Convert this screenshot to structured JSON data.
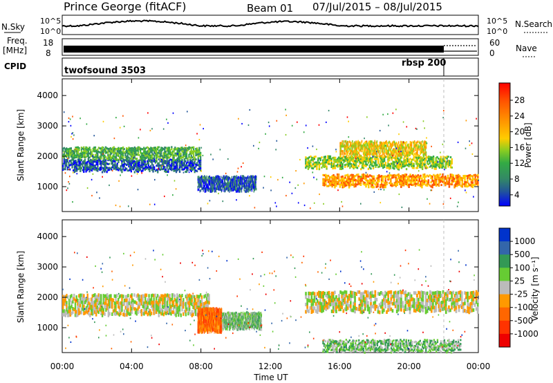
{
  "header": {
    "station": "Prince George (fitACF)",
    "beam": "Beam 01",
    "dates": "07/Jul/2015 – 08/Jul/2015"
  },
  "side_labels": {
    "nsky": "N.Sky",
    "freq": "Freq.",
    "mhz": "[MHz]",
    "cpid": "CPID",
    "nsearch": "N.Search",
    "nave": "Nave"
  },
  "cpid_entries": [
    {
      "label": "twofsound 3503",
      "start_hour": 0
    },
    {
      "label": "rbsp 200",
      "start_hour": 22
    }
  ],
  "nsky_axis": {
    "top": "10^5",
    "bottom": "10^0"
  },
  "freq_axis": {
    "ticks": [
      "18",
      "8"
    ]
  },
  "nave_axis": {
    "ticks": [
      "60",
      "0"
    ]
  },
  "chart_data": [
    {
      "type": "heatmap",
      "panel": "power",
      "ylabel": "Slant Range [km]",
      "ylim": [
        180,
        4550
      ],
      "yticks": [
        1000,
        2000,
        3000,
        4000
      ],
      "xlim": [
        0,
        24
      ],
      "colorbar": {
        "label": "Power [dB]",
        "ticks": [
          "28",
          "24",
          "20",
          "16",
          "12",
          "8",
          "4"
        ],
        "colors": [
          "#ff0000",
          "#ff5500",
          "#ff9900",
          "#ffcc00",
          "#88cc22",
          "#33aa44",
          "#338866",
          "#225599",
          "#0000ff"
        ]
      },
      "bands": [
        {
          "x": [
            0,
            8
          ],
          "y": [
            1500,
            1900
          ],
          "level": 7
        },
        {
          "x": [
            0,
            8
          ],
          "y": [
            1900,
            2300
          ],
          "level": 5
        },
        {
          "x": [
            7.8,
            11.2
          ],
          "y": [
            850,
            1350
          ],
          "level": 7
        },
        {
          "x": [
            14,
            22.5
          ],
          "y": [
            1600,
            2000
          ],
          "level": 4
        },
        {
          "x": [
            16,
            21
          ],
          "y": [
            2000,
            2500
          ],
          "level": 3
        },
        {
          "x": [
            15,
            24
          ],
          "y": [
            1000,
            1400
          ],
          "level": 2
        }
      ]
    },
    {
      "type": "heatmap",
      "panel": "velocity",
      "ylabel": "Slant Range [km]",
      "xlabel": "Time UT",
      "ylim": [
        180,
        4550
      ],
      "yticks": [
        1000,
        2000,
        3000,
        4000
      ],
      "xlim": [
        0,
        24
      ],
      "xticks": [
        "00:00",
        "04:00",
        "08:00",
        "12:00",
        "16:00",
        "20:00",
        "00:00"
      ],
      "colorbar": {
        "label": "Velocity [m s⁻¹]",
        "ticks": [
          "1000",
          "500",
          "100",
          "25",
          "-25",
          "-100",
          "-500",
          "-1000"
        ],
        "colors": [
          "#0033cc",
          "#3366aa",
          "#339955",
          "#66cc33",
          "#bbbbbb",
          "#ff9900",
          "#ff6600",
          "#ff3300",
          "#ee0000"
        ]
      },
      "bands": [
        {
          "x": [
            0,
            8.5
          ],
          "y": [
            1400,
            2100
          ],
          "level": 4
        },
        {
          "x": [
            7.8,
            9.2
          ],
          "y": [
            850,
            1650
          ],
          "level": 6
        },
        {
          "x": [
            9.2,
            11.5
          ],
          "y": [
            950,
            1500
          ],
          "level": 3
        },
        {
          "x": [
            14,
            24
          ],
          "y": [
            1500,
            2200
          ],
          "level": 4
        },
        {
          "x": [
            15,
            23
          ],
          "y": [
            200,
            600
          ],
          "level": 3
        }
      ]
    }
  ]
}
